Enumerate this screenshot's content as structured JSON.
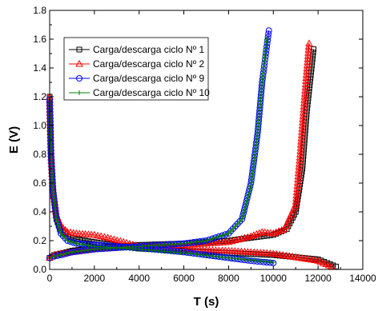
{
  "chart_data": {
    "type": "line",
    "xlabel": "T (s)",
    "ylabel": "E (V)",
    "xlim": [
      0,
      14000
    ],
    "ylim": [
      0.0,
      1.8
    ],
    "x_ticks": [
      "0",
      "2000",
      "4000",
      "6000",
      "8000",
      "10000",
      "12000",
      "14000"
    ],
    "y_ticks": [
      "0.0",
      "0.2",
      "0.4",
      "0.6",
      "0.8",
      "1.0",
      "1.2",
      "1.4",
      "1.6",
      "1.8"
    ],
    "legend_position": "top-left",
    "grid": false,
    "series": [
      {
        "name": "Carga/descarga ciclo Nº 1",
        "color": "#000000",
        "marker": "square",
        "discharge": [
          [
            0,
            1.2
          ],
          [
            60,
            0.8
          ],
          [
            150,
            0.55
          ],
          [
            300,
            0.35
          ],
          [
            500,
            0.27
          ],
          [
            800,
            0.23
          ],
          [
            1200,
            0.21
          ],
          [
            2000,
            0.19
          ],
          [
            4000,
            0.145
          ],
          [
            6000,
            0.13
          ],
          [
            8000,
            0.115
          ],
          [
            10000,
            0.1
          ],
          [
            12000,
            0.07
          ],
          [
            12800,
            0.02
          ]
        ],
        "charge": [
          [
            0,
            0.08
          ],
          [
            200,
            0.1
          ],
          [
            500,
            0.11
          ],
          [
            1000,
            0.13
          ],
          [
            2000,
            0.15
          ],
          [
            4000,
            0.17
          ],
          [
            6000,
            0.18
          ],
          [
            8000,
            0.2
          ],
          [
            9000,
            0.22
          ],
          [
            10000,
            0.24
          ],
          [
            10600,
            0.28
          ],
          [
            11000,
            0.4
          ],
          [
            11300,
            0.7
          ],
          [
            11500,
            1.1
          ],
          [
            11800,
            1.53
          ]
        ]
      },
      {
        "name": "Carga/descarga ciclo Nº 2",
        "color": "#ff0000",
        "marker": "triangle",
        "discharge": [
          [
            0,
            1.2
          ],
          [
            60,
            0.8
          ],
          [
            150,
            0.55
          ],
          [
            300,
            0.38
          ],
          [
            500,
            0.3
          ],
          [
            800,
            0.26
          ],
          [
            1200,
            0.25
          ],
          [
            1600,
            0.245
          ],
          [
            2000,
            0.24
          ],
          [
            2600,
            0.22
          ],
          [
            4000,
            0.16
          ],
          [
            6000,
            0.14
          ],
          [
            8000,
            0.13
          ],
          [
            10000,
            0.11
          ],
          [
            11000,
            0.085
          ],
          [
            12000,
            0.06
          ],
          [
            12600,
            0.02
          ]
        ],
        "charge": [
          [
            0,
            0.08
          ],
          [
            200,
            0.1
          ],
          [
            500,
            0.11
          ],
          [
            1000,
            0.12
          ],
          [
            2000,
            0.14
          ],
          [
            4000,
            0.16
          ],
          [
            6000,
            0.17
          ],
          [
            8000,
            0.19
          ],
          [
            9000,
            0.23
          ],
          [
            9500,
            0.26
          ],
          [
            10000,
            0.25
          ],
          [
            10500,
            0.28
          ],
          [
            11000,
            0.45
          ],
          [
            11200,
            0.8
          ],
          [
            11400,
            1.2
          ],
          [
            11600,
            1.57
          ]
        ]
      },
      {
        "name": "Carga/descarga ciclo Nº 9",
        "color": "#0000ff",
        "marker": "circle",
        "discharge": [
          [
            0,
            1.18
          ],
          [
            60,
            0.8
          ],
          [
            150,
            0.55
          ],
          [
            300,
            0.36
          ],
          [
            500,
            0.25
          ],
          [
            800,
            0.2
          ],
          [
            1200,
            0.18
          ],
          [
            2000,
            0.17
          ],
          [
            4000,
            0.15
          ],
          [
            6000,
            0.12
          ],
          [
            8000,
            0.08
          ],
          [
            9000,
            0.06
          ],
          [
            10000,
            0.045
          ]
        ],
        "charge": [
          [
            0,
            0.08
          ],
          [
            200,
            0.09
          ],
          [
            500,
            0.1
          ],
          [
            1000,
            0.12
          ],
          [
            2000,
            0.14
          ],
          [
            4000,
            0.16
          ],
          [
            6000,
            0.18
          ],
          [
            7000,
            0.2
          ],
          [
            8000,
            0.25
          ],
          [
            8600,
            0.35
          ],
          [
            9000,
            0.6
          ],
          [
            9300,
            0.95
          ],
          [
            9500,
            1.3
          ],
          [
            9800,
            1.66
          ]
        ]
      },
      {
        "name": "Carga/descarga ciclo Nº 10",
        "color": "#008000",
        "marker": "plus",
        "discharge": [
          [
            0,
            1.2
          ],
          [
            60,
            0.8
          ],
          [
            150,
            0.55
          ],
          [
            300,
            0.35
          ],
          [
            500,
            0.25
          ],
          [
            800,
            0.2
          ],
          [
            1200,
            0.18
          ],
          [
            2000,
            0.16
          ],
          [
            4000,
            0.14
          ],
          [
            6000,
            0.115
          ],
          [
            8000,
            0.08
          ],
          [
            9000,
            0.065
          ],
          [
            10000,
            0.05
          ]
        ],
        "charge": [
          [
            0,
            0.08
          ],
          [
            200,
            0.09
          ],
          [
            500,
            0.1
          ],
          [
            1000,
            0.12
          ],
          [
            2000,
            0.14
          ],
          [
            4000,
            0.16
          ],
          [
            6000,
            0.18
          ],
          [
            7000,
            0.2
          ],
          [
            8000,
            0.25
          ],
          [
            8600,
            0.35
          ],
          [
            9000,
            0.58
          ],
          [
            9300,
            0.95
          ],
          [
            9500,
            1.3
          ],
          [
            9700,
            1.6
          ]
        ]
      }
    ]
  }
}
